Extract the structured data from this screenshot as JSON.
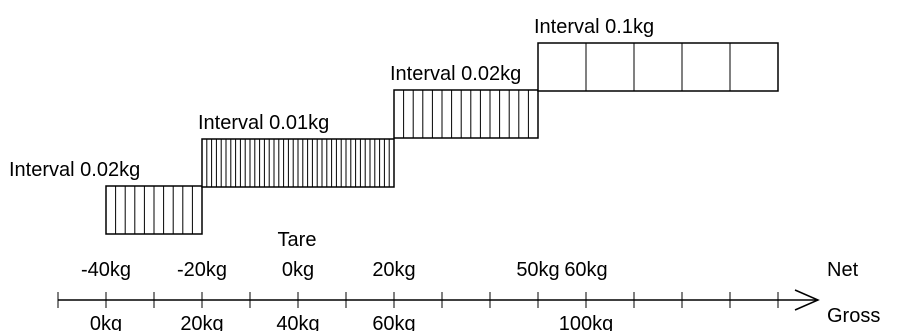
{
  "diagram": {
    "intervals": [
      {
        "label": "Interval 0.02kg",
        "net_from_kg": -40,
        "net_to_kg": -20,
        "hatch_lines": 10
      },
      {
        "label": "Interval 0.01kg",
        "net_from_kg": -20,
        "net_to_kg": 20,
        "hatch_lines": 40
      },
      {
        "label": "Interval 0.02kg",
        "net_from_kg": 20,
        "net_to_kg": 50,
        "hatch_lines": 15
      },
      {
        "label": "Interval 0.1kg",
        "net_from_kg": 50,
        "net_to_kg": 100,
        "hatch_lines": 5
      }
    ],
    "net_axis": {
      "label": "Net",
      "ticks": [
        {
          "value": -40,
          "label": "-40kg"
        },
        {
          "value": -20,
          "label": "-20kg"
        },
        {
          "value": 0,
          "label": "0kg",
          "caption": "Tare"
        },
        {
          "value": 20,
          "label": "20kg"
        },
        {
          "value": 50,
          "label": "50kg"
        },
        {
          "value": 60,
          "label": "60kg"
        }
      ]
    },
    "gross_axis": {
      "label": "Gross",
      "ticks": [
        {
          "value": 0,
          "label": "0kg"
        },
        {
          "value": 20,
          "label": "20kg"
        },
        {
          "value": 40,
          "label": "40kg"
        },
        {
          "value": 60,
          "label": "60kg"
        },
        {
          "value": 100,
          "label": "100kg"
        }
      ]
    },
    "tare_kg": 40
  }
}
